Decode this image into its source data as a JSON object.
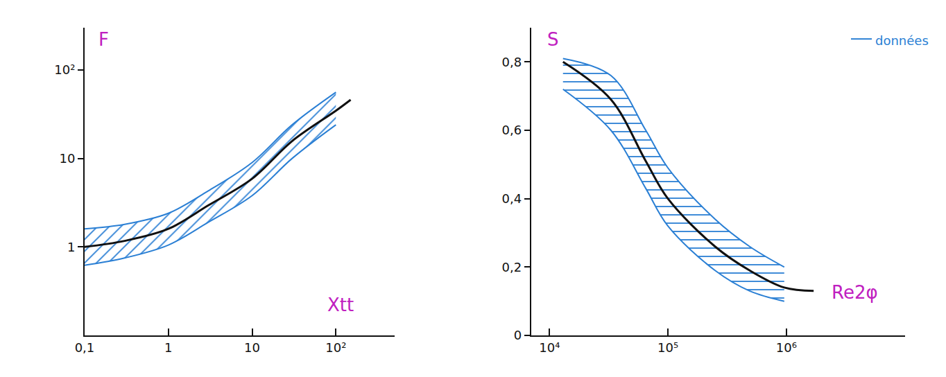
{
  "chart_data": [
    {
      "type": "line",
      "x_label": "Xtt",
      "y_label": "F",
      "x": [
        0.1,
        0.3,
        1,
        3,
        10,
        30,
        100,
        150
      ],
      "series": [
        {
          "color": "#111111",
          "values": [
            1,
            1.17,
            1.6,
            2.95,
            5.9,
            15.7,
            34.6,
            46
          ]
        }
      ],
      "band_color": "#2a7fd4",
      "band_upper": [
        1.6,
        1.8,
        2.4,
        4.3,
        9,
        24,
        56,
        null
      ],
      "band_lower": [
        0.62,
        0.75,
        1.05,
        1.9,
        3.8,
        10,
        24,
        null
      ],
      "log": true,
      "xlim": [
        0.1,
        500
      ],
      "xticks": [
        {
          "value": 0.1,
          "label": "0,1"
        },
        1,
        10,
        {
          "value": 100,
          "label": "10²"
        }
      ],
      "ylim": [
        0.1,
        300
      ],
      "yticks": [
        1,
        10,
        {
          "value": 100,
          "label": "10²"
        }
      ],
      "grid": false
    },
    {
      "type": "line",
      "x_label": "Re2φ",
      "y_label": "S",
      "x": [
        13000,
        33000,
        65000,
        100000,
        250000,
        490000,
        960000,
        1700000
      ],
      "series": [
        {
          "color": "#111111",
          "values": [
            0.8,
            0.69,
            0.51,
            0.4,
            0.26,
            0.19,
            0.14,
            0.13
          ]
        }
      ],
      "band_name": "données",
      "band_color": "#2a7fd4",
      "band_upper": [
        0.81,
        0.76,
        0.6,
        0.49,
        0.34,
        0.26,
        0.2,
        null
      ],
      "band_lower": [
        0.72,
        0.6,
        0.43,
        0.32,
        0.19,
        0.13,
        0.1,
        null
      ],
      "log": "x",
      "xlim": [
        7000,
        10000000
      ],
      "xticks": [
        {
          "value": 10000,
          "label": "10⁴"
        },
        {
          "value": 100000,
          "label": "10⁵"
        },
        {
          "value": 1000000,
          "label": "10⁶"
        }
      ],
      "ylim": [
        0,
        0.9
      ],
      "yticks": [
        0,
        {
          "value": 0.2,
          "label": "0,2"
        },
        {
          "value": 0.4,
          "label": "0,4"
        },
        {
          "value": 0.6,
          "label": "0,6"
        },
        {
          "value": 0.8,
          "label": "0,8"
        }
      ],
      "legend": "top right",
      "grid": false
    }
  ]
}
